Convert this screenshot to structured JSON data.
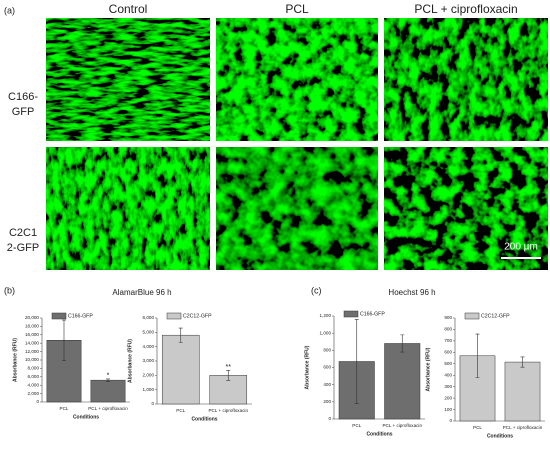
{
  "panel_a": {
    "label": "(a)",
    "columns": [
      "Control",
      "PCL",
      "PCL + ciprofloxacin"
    ],
    "rows": [
      [
        "C166-",
        "GFP"
      ],
      [
        "C2C1",
        "2-GFP"
      ]
    ],
    "scale_bar": "200 µm"
  },
  "panel_b": {
    "label": "(b)",
    "title": "AlamarBlue 96 h"
  },
  "panel_c": {
    "label": "(c)",
    "title": "Hoechst 96 h"
  },
  "chart_data": [
    {
      "type": "bar",
      "categories": [
        "PCL",
        "PCL + ciprofloxacin"
      ],
      "xlabel": "Conditions",
      "ylabel": "Absorbance (RFU)",
      "series": [
        {
          "name": "C166-GFP",
          "color": "#6e6e6e",
          "values": [
            14700,
            5200
          ],
          "errors": [
            4800,
            300
          ]
        }
      ],
      "value_annotations": [
        null,
        "*"
      ],
      "ylim": [
        0,
        20000
      ],
      "yticks": [
        0,
        {
          "value": 2000,
          "label": "2,000"
        },
        {
          "value": 4000,
          "label": "4,000"
        },
        {
          "value": 6000,
          "label": "6,000"
        },
        {
          "value": 8000,
          "label": "8,000"
        },
        {
          "value": 10000,
          "label": "10,000"
        },
        {
          "value": 12000,
          "label": "12,000"
        },
        {
          "value": 14000,
          "label": "14,000"
        },
        {
          "value": 16000,
          "label": "16,000"
        },
        {
          "value": 18000,
          "label": "18,000"
        },
        {
          "value": 20000,
          "label": "20,000"
        }
      ]
    },
    {
      "type": "bar",
      "categories": [
        "PCL",
        "PCL + ciprofloxacin"
      ],
      "xlabel": "Conditions",
      "ylabel": "Absorbance (RFU)",
      "series": [
        {
          "name": "C2C12-GFP",
          "color": "#c9c9c9",
          "values": [
            4800,
            2000
          ],
          "errors": [
            500,
            350
          ]
        }
      ],
      "value_annotations": [
        null,
        "**"
      ],
      "ylim": [
        0,
        6000
      ],
      "yticks": [
        0,
        {
          "value": 1000,
          "label": "1,000"
        },
        {
          "value": 2000,
          "label": "2,000"
        },
        {
          "value": 3000,
          "label": "3,000"
        },
        {
          "value": 4000,
          "label": "4,000"
        },
        {
          "value": 5000,
          "label": "5,000"
        },
        {
          "value": 6000,
          "label": "6,000"
        }
      ]
    },
    {
      "type": "bar",
      "categories": [
        "PCL",
        "PCL + ciprofloxacin"
      ],
      "xlabel": "Conditions",
      "ylabel": "Absorbance (RFU)",
      "series": [
        {
          "name": "C166-GFP",
          "color": "#6e6e6e",
          "values": [
            670,
            880
          ],
          "errors": [
            490,
            100
          ]
        }
      ],
      "ylim": [
        0,
        1200
      ],
      "yticks": [
        0,
        200,
        400,
        600,
        800,
        {
          "value": 1000,
          "label": "1,000"
        },
        {
          "value": 1200,
          "label": "1,200"
        }
      ]
    },
    {
      "type": "bar",
      "categories": [
        "PCL",
        "PCL + ciprofloxacin"
      ],
      "xlabel": "Conditions",
      "ylabel": "Absorbance (RFU)",
      "series": [
        {
          "name": "C2C12-GFP",
          "color": "#c9c9c9",
          "values": [
            570,
            515
          ],
          "errors": [
            190,
            45
          ]
        }
      ],
      "ylim": [
        0,
        900
      ],
      "yticks": [
        0,
        100,
        200,
        300,
        400,
        500,
        600,
        700,
        800,
        900
      ]
    }
  ]
}
